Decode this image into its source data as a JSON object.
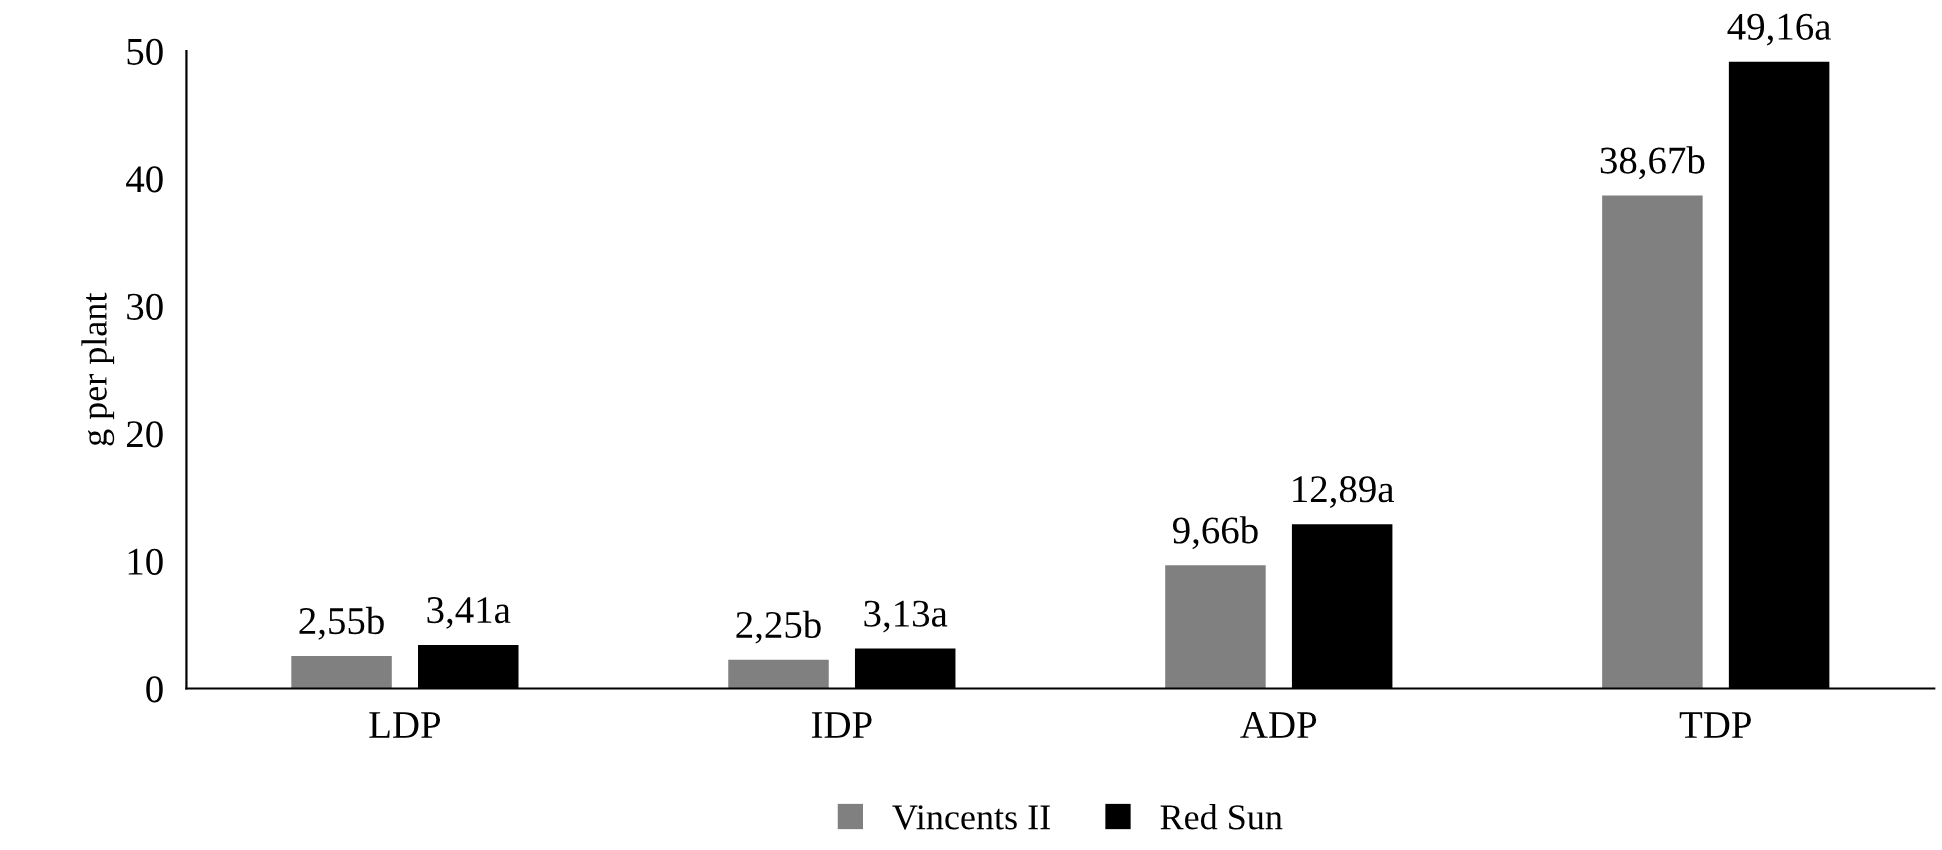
{
  "chart_data": {
    "type": "bar",
    "ylabel": "g per plant",
    "categories": [
      "LDP",
      "IDP",
      "ADP",
      "TDP"
    ],
    "series": [
      {
        "name": "Vincents II",
        "color": "#808080",
        "values": [
          2.55,
          2.25,
          9.66,
          38.67
        ],
        "value_labels": [
          "2,55b",
          "2,25b",
          "9,66b",
          "38,67b"
        ]
      },
      {
        "name": "Red Sun",
        "color": "#000000",
        "values": [
          3.41,
          3.13,
          12.89,
          49.16
        ],
        "value_labels": [
          "3,41a",
          "3,13a",
          "12,89a",
          "49,16a"
        ]
      }
    ],
    "ylim": [
      0,
      50
    ],
    "yticks": [
      0,
      10,
      20,
      30,
      40,
      50
    ],
    "grid": false,
    "legend": "bottom"
  }
}
